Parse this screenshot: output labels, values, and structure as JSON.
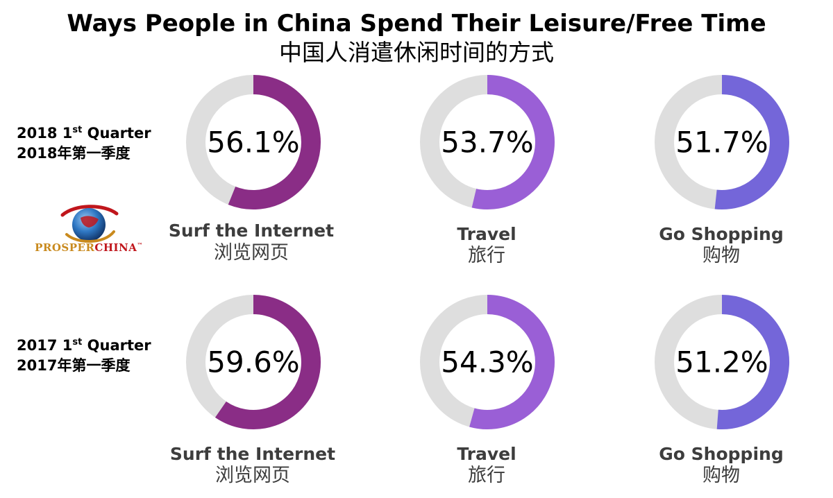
{
  "title_en": "Ways People in China Spend Their Leisure/Free Time",
  "title_zh": "中国人消遣休闲时间的方式",
  "logo": {
    "text_part1": "PROSPER",
    "text_part2": "CHINA",
    "tm": "™"
  },
  "colors": {
    "track": "#dedede",
    "internet": "#8a2d86",
    "travel": "#9a5fd6",
    "shopping": "#7466d9"
  },
  "chart_data": {
    "type": "donut",
    "title": "Ways People in China Spend Their Leisure/Free Time",
    "subtitle": "中国人消遣休闲时间的方式",
    "unit": "%",
    "rows": [
      {
        "period_line1_prefix": "2018 1",
        "period_line1_sup": "st",
        "period_line1_suffix": " Quarter",
        "period_line2": "2018年第一季度",
        "items": [
          {
            "label_en": "Surf the Internet",
            "label_zh": "浏览网页",
            "value": 56.1,
            "display": "56.1%",
            "color": "#8a2d86"
          },
          {
            "label_en": "Travel",
            "label_zh": "旅行",
            "value": 53.7,
            "display": "53.7%",
            "color": "#9a5fd6"
          },
          {
            "label_en": "Go Shopping",
            "label_zh": "购物",
            "value": 51.7,
            "display": "51.7%",
            "color": "#7466d9"
          }
        ]
      },
      {
        "period_line1_prefix": "2017 1",
        "period_line1_sup": "st",
        "period_line1_suffix": " Quarter",
        "period_line2": "2017年第一季度",
        "items": [
          {
            "label_en": "Surf the Internet",
            "label_zh": "浏览网页",
            "value": 59.6,
            "display": "59.6%",
            "color": "#8a2d86"
          },
          {
            "label_en": "Travel",
            "label_zh": "旅行",
            "value": 54.3,
            "display": "54.3%",
            "color": "#9a5fd6"
          },
          {
            "label_en": "Go Shopping",
            "label_zh": "购物",
            "value": 51.2,
            "display": "51.2%",
            "color": "#7466d9"
          }
        ]
      }
    ]
  }
}
